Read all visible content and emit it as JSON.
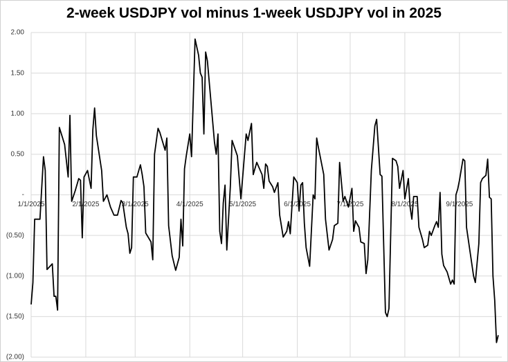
{
  "chart_data": {
    "type": "line",
    "title": "2-week USDJPY vol minus 1-week USDJPY vol in 2025",
    "x": [
      "2025-01-01",
      "2025-01-02",
      "2025-01-03",
      "2025-01-06",
      "2025-01-08",
      "2025-01-09",
      "2025-01-10",
      "2025-01-13",
      "2025-01-14",
      "2025-01-15",
      "2025-01-16",
      "2025-01-17",
      "2025-01-20",
      "2025-01-22",
      "2025-01-23",
      "2025-01-24",
      "2025-01-26",
      "2025-01-28",
      "2025-01-29",
      "2025-01-30",
      "2025-01-31",
      "2025-02-02",
      "2025-02-04",
      "2025-02-05",
      "2025-02-06",
      "2025-02-07",
      "2025-02-10",
      "2025-02-11",
      "2025-02-13",
      "2025-02-15",
      "2025-02-17",
      "2025-02-19",
      "2025-02-21",
      "2025-02-22",
      "2025-02-24",
      "2025-02-25",
      "2025-02-26",
      "2025-02-27",
      "2025-02-28",
      "2025-03-02",
      "2025-03-04",
      "2025-03-05",
      "2025-03-06",
      "2025-03-07",
      "2025-03-10",
      "2025-03-11",
      "2025-03-12",
      "2025-03-14",
      "2025-03-15",
      "2025-03-18",
      "2025-03-19",
      "2025-03-20",
      "2025-03-22",
      "2025-03-24",
      "2025-03-26",
      "2025-03-27",
      "2025-03-28",
      "2025-03-29",
      "2025-03-30",
      "2025-04-01",
      "2025-04-02",
      "2025-04-04",
      "2025-04-06",
      "2025-04-07",
      "2025-04-08",
      "2025-04-09",
      "2025-04-10",
      "2025-04-11",
      "2025-04-13",
      "2025-04-15",
      "2025-04-16",
      "2025-04-17",
      "2025-04-18",
      "2025-04-19",
      "2025-04-20",
      "2025-04-21",
      "2025-04-22",
      "2025-04-24",
      "2025-04-25",
      "2025-04-28",
      "2025-04-30",
      "2025-05-03",
      "2025-05-04",
      "2025-05-06",
      "2025-05-07",
      "2025-05-09",
      "2025-05-12",
      "2025-05-13",
      "2025-05-14",
      "2025-05-15",
      "2025-05-16",
      "2025-05-18",
      "2025-05-19",
      "2025-05-21",
      "2025-05-22",
      "2025-05-24",
      "2025-05-26",
      "2025-05-27",
      "2025-05-28",
      "2025-05-30",
      "2025-06-01",
      "2025-06-02",
      "2025-06-03",
      "2025-06-04",
      "2025-06-05",
      "2025-06-06",
      "2025-06-08",
      "2025-06-10",
      "2025-06-11",
      "2025-06-12",
      "2025-06-13",
      "2025-06-16",
      "2025-06-17",
      "2025-06-19",
      "2025-06-21",
      "2025-06-22",
      "2025-06-24",
      "2025-06-25",
      "2025-06-27",
      "2025-06-28",
      "2025-06-30",
      "2025-07-02",
      "2025-07-03",
      "2025-07-04",
      "2025-07-06",
      "2025-07-07",
      "2025-07-09",
      "2025-07-10",
      "2025-07-11",
      "2025-07-13",
      "2025-07-15",
      "2025-07-16",
      "2025-07-18",
      "2025-07-19",
      "2025-07-21",
      "2025-07-22",
      "2025-07-23",
      "2025-07-25",
      "2025-07-27",
      "2025-07-28",
      "2025-07-29",
      "2025-07-31",
      "2025-08-01",
      "2025-08-03",
      "2025-08-04",
      "2025-08-05",
      "2025-08-06",
      "2025-08-08",
      "2025-08-09",
      "2025-08-11",
      "2025-08-12",
      "2025-08-14",
      "2025-08-15",
      "2025-08-16",
      "2025-08-18",
      "2025-08-19",
      "2025-08-20",
      "2025-08-21",
      "2025-08-22",
      "2025-08-23",
      "2025-08-25",
      "2025-08-27",
      "2025-08-28",
      "2025-08-29",
      "2025-08-30",
      "2025-08-31",
      "2025-09-01",
      "2025-09-03",
      "2025-09-04",
      "2025-09-05",
      "2025-09-07",
      "2025-09-09",
      "2025-09-10",
      "2025-09-12",
      "2025-09-13",
      "2025-09-14",
      "2025-09-16",
      "2025-09-17",
      "2025-09-18",
      "2025-09-19",
      "2025-09-20",
      "2025-09-21",
      "2025-09-22",
      "2025-09-23"
    ],
    "series": [
      {
        "color": "#000000",
        "values": [
          -1.35,
          -1.08,
          -0.3,
          -0.3,
          0.47,
          0.3,
          -0.92,
          -0.85,
          -1.25,
          -1.25,
          -1.42,
          0.83,
          0.62,
          0.22,
          0.98,
          -0.08,
          0.05,
          0.2,
          0.18,
          -0.53,
          0.22,
          0.3,
          0.08,
          0.8,
          1.07,
          0.73,
          0.3,
          -0.08,
          0.0,
          -0.15,
          -0.25,
          -0.25,
          -0.07,
          -0.1,
          -0.4,
          -0.48,
          -0.72,
          -0.65,
          0.22,
          0.22,
          0.37,
          0.25,
          0.1,
          -0.47,
          -0.58,
          -0.8,
          0.5,
          0.82,
          0.77,
          0.55,
          0.7,
          -0.38,
          -0.75,
          -0.93,
          -0.77,
          -0.3,
          -0.63,
          0.32,
          0.48,
          0.75,
          0.47,
          1.92,
          1.72,
          1.5,
          1.45,
          0.75,
          1.76,
          1.65,
          1.15,
          0.65,
          0.5,
          0.75,
          -0.45,
          -0.6,
          -0.1,
          0.12,
          -0.68,
          0.1,
          0.67,
          0.48,
          -0.05,
          0.75,
          0.67,
          0.88,
          0.25,
          0.4,
          0.25,
          0.08,
          0.38,
          0.35,
          0.17,
          0.1,
          0.03,
          0.15,
          -0.25,
          -0.52,
          -0.45,
          -0.33,
          -0.48,
          0.22,
          0.15,
          -0.2,
          0.12,
          0.15,
          -0.35,
          -0.65,
          -0.88,
          0.0,
          -0.05,
          0.7,
          0.58,
          0.25,
          -0.3,
          -0.68,
          -0.55,
          -0.38,
          -0.35,
          0.4,
          -0.08,
          -0.02,
          -0.15,
          0.08,
          -0.45,
          -0.32,
          -0.4,
          -0.58,
          -0.6,
          -0.97,
          -0.8,
          0.3,
          0.85,
          0.93,
          0.25,
          0.23,
          -1.45,
          -1.5,
          -1.4,
          0.45,
          0.42,
          0.35,
          0.08,
          0.3,
          -0.05,
          0.2,
          -0.15,
          -0.3,
          -0.02,
          -0.02,
          -0.4,
          -0.55,
          -0.65,
          -0.62,
          -0.45,
          -0.5,
          -0.38,
          -0.33,
          -0.4,
          0.03,
          -0.73,
          -0.87,
          -0.95,
          -1.1,
          -1.05,
          -1.1,
          0.0,
          0.07,
          0.18,
          0.44,
          0.42,
          -0.4,
          -0.7,
          -1.0,
          -1.08,
          -0.6,
          0.15,
          0.2,
          0.24,
          0.44,
          -0.03,
          -0.05,
          -1.0,
          -1.3,
          -1.82,
          -1.73
        ]
      }
    ],
    "xlim": [
      "2025-01-01",
      "2025-09-25"
    ],
    "xticks": [
      {
        "value": "2025-01-01",
        "label": "1/1/2025"
      },
      {
        "value": "2025-02-01",
        "label": "2/1/2025"
      },
      {
        "value": "2025-03-01",
        "label": "3/1/2025"
      },
      {
        "value": "2025-04-01",
        "label": "4/1/2025"
      },
      {
        "value": "2025-05-01",
        "label": "5/1/2025"
      },
      {
        "value": "2025-06-01",
        "label": "6/1/2025"
      },
      {
        "value": "2025-07-01",
        "label": "7/1/2025"
      },
      {
        "value": "2025-08-01",
        "label": "8/1/2025"
      },
      {
        "value": "2025-09-01",
        "label": "9/1/2025"
      }
    ],
    "ylim": [
      -2,
      2
    ],
    "yticks": [
      {
        "value": 2,
        "label": "2.00"
      },
      {
        "value": 1.5,
        "label": "1.50"
      },
      {
        "value": 1,
        "label": "1.00"
      },
      {
        "value": 0.5,
        "label": "0.50"
      },
      {
        "value": 0,
        "label": "-"
      },
      {
        "value": -0.5,
        "label": "(0.50)"
      },
      {
        "value": -1,
        "label": "(1.00)"
      },
      {
        "value": -1.5,
        "label": "(1.50)"
      },
      {
        "value": -2,
        "label": "(2.00)"
      }
    ],
    "grid": true
  }
}
